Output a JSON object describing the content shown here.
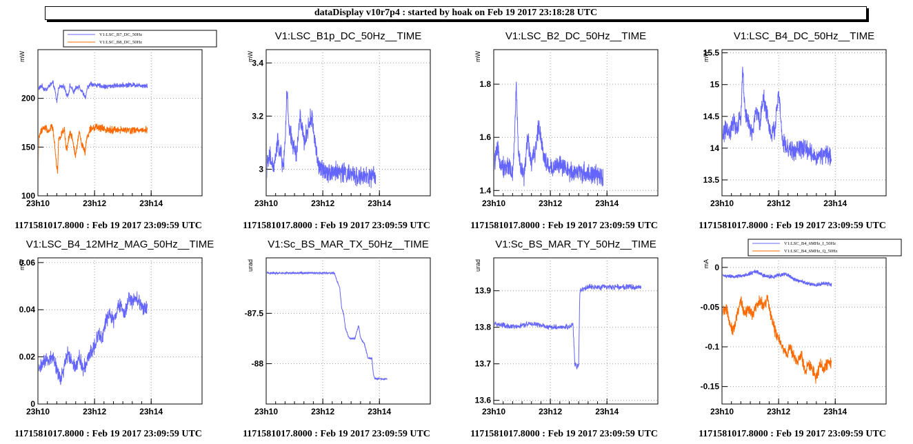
{
  "header": {
    "title": "dataDisplay v10r7p4 : started by hoak on Feb 19 2017 23:18:28 UTC"
  },
  "footer_text": "1171581017.8000 : Feb 19 2017 23:09:59 UTC",
  "colors": {
    "blue": "#6464ff",
    "orange": "#ff6a00"
  },
  "chart_data": [
    {
      "type": "line",
      "title": "",
      "ylabel": "mW",
      "x": [
        "23h10",
        "23h12",
        "23h14"
      ],
      "ylim": [
        100,
        250
      ],
      "yticks": [
        100,
        150,
        200
      ],
      "legend": [
        "V1:LSC_B7_DC_50Hz",
        "V1:LSC_B8_DC_50Hz"
      ],
      "series": [
        {
          "name": "V1:LSC_B7_DC_50Hz",
          "color": "#6464ff",
          "noise": 2,
          "points": [
            [
              0,
              210
            ],
            [
              0.05,
              211
            ],
            [
              0.1,
              213
            ],
            [
              0.15,
              210
            ],
            [
              0.2,
              209
            ],
            [
              0.25,
              210
            ],
            [
              0.3,
              213
            ],
            [
              0.4,
              216
            ],
            [
              0.45,
              208
            ],
            [
              0.5,
              196
            ],
            [
              0.55,
              212
            ],
            [
              0.7,
              212
            ],
            [
              0.75,
              205
            ],
            [
              0.8,
              203
            ],
            [
              0.85,
              213
            ],
            [
              0.9,
              210
            ],
            [
              0.95,
              206
            ],
            [
              1,
              210
            ],
            [
              1.1,
              213
            ],
            [
              1.12,
              210
            ],
            [
              1.2,
              205
            ],
            [
              1.27,
              200
            ],
            [
              1.3,
              210
            ],
            [
              1.4,
              215
            ],
            [
              1.6,
              213
            ],
            [
              1.8,
              212
            ],
            [
              2,
              213
            ],
            [
              2.5,
              214
            ],
            [
              2.9,
              213
            ]
          ]
        },
        {
          "name": "V1:LSC_B8_DC_50Hz",
          "color": "#ff6a00",
          "noise": 3,
          "points": [
            [
              0,
              105
            ],
            [
              0.02,
              160
            ],
            [
              0.1,
              168
            ],
            [
              0.2,
              170
            ],
            [
              0.3,
              166
            ],
            [
              0.35,
              172
            ],
            [
              0.4,
              168
            ],
            [
              0.45,
              150
            ],
            [
              0.5,
              130
            ],
            [
              0.52,
              124
            ],
            [
              0.55,
              158
            ],
            [
              0.7,
              168
            ],
            [
              0.75,
              145
            ],
            [
              0.8,
              155
            ],
            [
              0.85,
              165
            ],
            [
              0.9,
              160
            ],
            [
              0.95,
              150
            ],
            [
              1,
              140
            ],
            [
              1.05,
              155
            ],
            [
              1.1,
              165
            ],
            [
              1.15,
              155
            ],
            [
              1.25,
              145
            ],
            [
              1.3,
              160
            ],
            [
              1.4,
              170
            ],
            [
              1.6,
              170
            ],
            [
              1.8,
              168
            ],
            [
              2,
              168
            ],
            [
              2.4,
              167
            ],
            [
              2.9,
              168
            ]
          ]
        }
      ]
    },
    {
      "type": "line",
      "title": "V1:LSC_B1p_DC_50Hz__TIME",
      "ylabel": "mW",
      "x": [
        "23h10",
        "23h12",
        "23h14"
      ],
      "ylim": [
        2.9,
        3.45
      ],
      "yticks": [
        3,
        3.2,
        3.4
      ],
      "series": [
        {
          "name": "",
          "color": "#6464ff",
          "noise": 0.03,
          "points": [
            [
              0,
              3.0
            ],
            [
              0.1,
              3.05
            ],
            [
              0.2,
              3.0
            ],
            [
              0.3,
              3.1
            ],
            [
              0.4,
              3.05
            ],
            [
              0.45,
              3.0
            ],
            [
              0.5,
              3.1
            ],
            [
              0.55,
              3.3
            ],
            [
              0.6,
              3.15
            ],
            [
              0.7,
              3.1
            ],
            [
              0.8,
              3.05
            ],
            [
              0.9,
              3.2
            ],
            [
              1,
              3.1
            ],
            [
              1.1,
              3.15
            ],
            [
              1.2,
              3.2
            ],
            [
              1.3,
              3.1
            ],
            [
              1.4,
              3.0
            ],
            [
              1.5,
              3.0
            ],
            [
              1.7,
              2.99
            ],
            [
              2,
              2.99
            ],
            [
              2.2,
              2.98
            ],
            [
              2.5,
              2.97
            ],
            [
              2.9,
              2.97
            ]
          ]
        }
      ]
    },
    {
      "type": "line",
      "title": "V1:LSC_B2_DC_50Hz__TIME",
      "ylabel": "mW",
      "x": [
        "23h10",
        "23h12",
        "23h14"
      ],
      "ylim": [
        1.38,
        1.93
      ],
      "yticks": [
        1.4,
        1.6,
        1.8
      ],
      "series": [
        {
          "name": "",
          "color": "#6464ff",
          "noise": 0.03,
          "points": [
            [
              0,
              1.5
            ],
            [
              0.1,
              1.55
            ],
            [
              0.2,
              1.5
            ],
            [
              0.3,
              1.48
            ],
            [
              0.4,
              1.5
            ],
            [
              0.5,
              1.45
            ],
            [
              0.55,
              1.6
            ],
            [
              0.6,
              1.8
            ],
            [
              0.65,
              1.55
            ],
            [
              0.7,
              1.5
            ],
            [
              0.8,
              1.45
            ],
            [
              0.9,
              1.6
            ],
            [
              1,
              1.5
            ],
            [
              1.1,
              1.55
            ],
            [
              1.2,
              1.65
            ],
            [
              1.3,
              1.55
            ],
            [
              1.4,
              1.5
            ],
            [
              1.5,
              1.48
            ],
            [
              1.7,
              1.5
            ],
            [
              2,
              1.47
            ],
            [
              2.3,
              1.47
            ],
            [
              2.6,
              1.46
            ],
            [
              2.9,
              1.45
            ]
          ]
        }
      ]
    },
    {
      "type": "line",
      "title": "V1:LSC_B4_DC_50Hz__TIME",
      "ylabel": "mW",
      "x": [
        "23h10",
        "23h12",
        "23h14"
      ],
      "ylim": [
        13.25,
        15.55
      ],
      "yticks": [
        13.5,
        14,
        14.5,
        15,
        15.5
      ],
      "series": [
        {
          "name": "",
          "color": "#6464ff",
          "noise": 0.12,
          "points": [
            [
              0,
              14.2
            ],
            [
              0.1,
              14.3
            ],
            [
              0.2,
              14.2
            ],
            [
              0.3,
              14.4
            ],
            [
              0.4,
              14.3
            ],
            [
              0.5,
              14.5
            ],
            [
              0.55,
              15.3
            ],
            [
              0.6,
              14.6
            ],
            [
              0.7,
              14.4
            ],
            [
              0.8,
              14.2
            ],
            [
              0.9,
              14.6
            ],
            [
              1,
              14.4
            ],
            [
              1.1,
              14.8
            ],
            [
              1.2,
              14.5
            ],
            [
              1.3,
              14.2
            ],
            [
              1.4,
              14.3
            ],
            [
              1.5,
              14.9
            ],
            [
              1.55,
              14.5
            ],
            [
              1.6,
              14.1
            ],
            [
              1.7,
              14.0
            ],
            [
              1.9,
              13.95
            ],
            [
              2.1,
              14.0
            ],
            [
              2.3,
              13.95
            ],
            [
              2.5,
              13.85
            ],
            [
              2.7,
              13.9
            ],
            [
              2.9,
              13.85
            ]
          ]
        }
      ]
    },
    {
      "type": "line",
      "title": "V1:LSC_B4_12MHz_MAG_50Hz__TIME",
      "ylabel": "mW",
      "x": [
        "23h10",
        "23h12",
        "23h14"
      ],
      "ylim": [
        0,
        0.062
      ],
      "yticks": [
        0,
        0.02,
        0.04,
        0.06
      ],
      "series": [
        {
          "name": "",
          "color": "#6464ff",
          "noise": 0.0025,
          "points": [
            [
              0,
              0.015
            ],
            [
              0.2,
              0.018
            ],
            [
              0.4,
              0.02
            ],
            [
              0.5,
              0.015
            ],
            [
              0.6,
              0.01
            ],
            [
              0.7,
              0.016
            ],
            [
              0.8,
              0.022
            ],
            [
              0.9,
              0.018
            ],
            [
              1,
              0.016
            ],
            [
              1.1,
              0.02
            ],
            [
              1.2,
              0.015
            ],
            [
              1.3,
              0.018
            ],
            [
              1.4,
              0.022
            ],
            [
              1.5,
              0.025
            ],
            [
              1.6,
              0.03
            ],
            [
              1.7,
              0.028
            ],
            [
              1.8,
              0.035
            ],
            [
              1.9,
              0.038
            ],
            [
              2,
              0.035
            ],
            [
              2.1,
              0.04
            ],
            [
              2.2,
              0.042
            ],
            [
              2.3,
              0.038
            ],
            [
              2.4,
              0.045
            ],
            [
              2.5,
              0.043
            ],
            [
              2.6,
              0.045
            ],
            [
              2.7,
              0.043
            ],
            [
              2.8,
              0.04
            ],
            [
              2.9,
              0.042
            ]
          ]
        }
      ]
    },
    {
      "type": "line",
      "title": "V1:Sc_BS_MAR_TX_50Hz__TIME",
      "ylabel": "urad",
      "x": [
        "23h10",
        "23h12",
        "23h14"
      ],
      "ylim": [
        -88.4,
        -86.95
      ],
      "yticks": [
        -87.5,
        -88
      ],
      "series": [
        {
          "name": "",
          "color": "#6464ff",
          "noise": 0.008,
          "points": [
            [
              0,
              -87.1
            ],
            [
              1,
              -87.1
            ],
            [
              1.8,
              -87.1
            ],
            [
              1.95,
              -87.25
            ],
            [
              2.0,
              -87.45
            ],
            [
              2.05,
              -87.5
            ],
            [
              2.1,
              -87.65
            ],
            [
              2.2,
              -87.75
            ],
            [
              2.35,
              -87.75
            ],
            [
              2.45,
              -87.62
            ],
            [
              2.5,
              -87.75
            ],
            [
              2.6,
              -87.8
            ],
            [
              2.7,
              -87.95
            ],
            [
              2.8,
              -87.95
            ],
            [
              2.85,
              -88.13
            ],
            [
              2.9,
              -88.15
            ],
            [
              3.2,
              -88.15
            ]
          ]
        }
      ]
    },
    {
      "type": "line",
      "title": "V1:Sc_BS_MAR_TY_50Hz__TIME",
      "ylabel": "urad",
      "x": [
        "23h10",
        "23h12",
        "23h14"
      ],
      "ylim": [
        13.59,
        13.99
      ],
      "yticks": [
        13.6,
        13.7,
        13.8,
        13.9
      ],
      "series": [
        {
          "name": "",
          "color": "#6464ff",
          "noise": 0.006,
          "points": [
            [
              0,
              13.81
            ],
            [
              0.5,
              13.8
            ],
            [
              1,
              13.81
            ],
            [
              1.5,
              13.8
            ],
            [
              2.0,
              13.8
            ],
            [
              2.1,
              13.81
            ],
            [
              2.15,
              13.7
            ],
            [
              2.2,
              13.69
            ],
            [
              2.25,
              13.7
            ],
            [
              2.28,
              13.9
            ],
            [
              2.5,
              13.91
            ],
            [
              3,
              13.91
            ],
            [
              3.5,
              13.91
            ],
            [
              3.9,
              13.91
            ]
          ]
        }
      ]
    },
    {
      "type": "line",
      "title": "",
      "ylabel": "mA",
      "x": [
        "23h10",
        "23h12",
        "23h14"
      ],
      "ylim": [
        -0.172,
        0.012
      ],
      "yticks": [
        0,
        -0.05,
        -0.1,
        -0.15
      ],
      "legend": [
        "V1:LSC_B4_6MHz_I_50Hz",
        "V1:LSC_B4_6MHz_Q_50Hz"
      ],
      "series": [
        {
          "name": "V1:LSC_B4_6MHz_I_50Hz",
          "color": "#6464ff",
          "noise": 0.002,
          "points": [
            [
              0,
              -0.01
            ],
            [
              0.3,
              -0.012
            ],
            [
              0.6,
              -0.01
            ],
            [
              0.9,
              -0.005
            ],
            [
              1.1,
              -0.01
            ],
            [
              1.3,
              -0.012
            ],
            [
              1.5,
              -0.01
            ],
            [
              1.7,
              -0.008
            ],
            [
              1.9,
              -0.015
            ],
            [
              2.1,
              -0.018
            ],
            [
              2.3,
              -0.02
            ],
            [
              2.5,
              -0.022
            ],
            [
              2.7,
              -0.02
            ],
            [
              2.9,
              -0.022
            ]
          ]
        },
        {
          "name": "V1:LSC_B4_6MHz_Q_50Hz",
          "color": "#ff6a00",
          "noise": 0.006,
          "points": [
            [
              0,
              -0.06
            ],
            [
              0.1,
              -0.05
            ],
            [
              0.2,
              -0.07
            ],
            [
              0.3,
              -0.08
            ],
            [
              0.4,
              -0.06
            ],
            [
              0.5,
              -0.04
            ],
            [
              0.6,
              -0.06
            ],
            [
              0.7,
              -0.05
            ],
            [
              0.8,
              -0.06
            ],
            [
              0.9,
              -0.05
            ],
            [
              1,
              -0.04
            ],
            [
              1.1,
              -0.05
            ],
            [
              1.2,
              -0.04
            ],
            [
              1.3,
              -0.06
            ],
            [
              1.4,
              -0.08
            ],
            [
              1.5,
              -0.09
            ],
            [
              1.6,
              -0.1
            ],
            [
              1.7,
              -0.11
            ],
            [
              1.8,
              -0.1
            ],
            [
              1.9,
              -0.11
            ],
            [
              2,
              -0.12
            ],
            [
              2.1,
              -0.11
            ],
            [
              2.2,
              -0.13
            ],
            [
              2.3,
              -0.12
            ],
            [
              2.4,
              -0.13
            ],
            [
              2.5,
              -0.14
            ],
            [
              2.6,
              -0.12
            ],
            [
              2.7,
              -0.13
            ],
            [
              2.8,
              -0.12
            ],
            [
              2.9,
              -0.12
            ]
          ]
        }
      ]
    }
  ]
}
